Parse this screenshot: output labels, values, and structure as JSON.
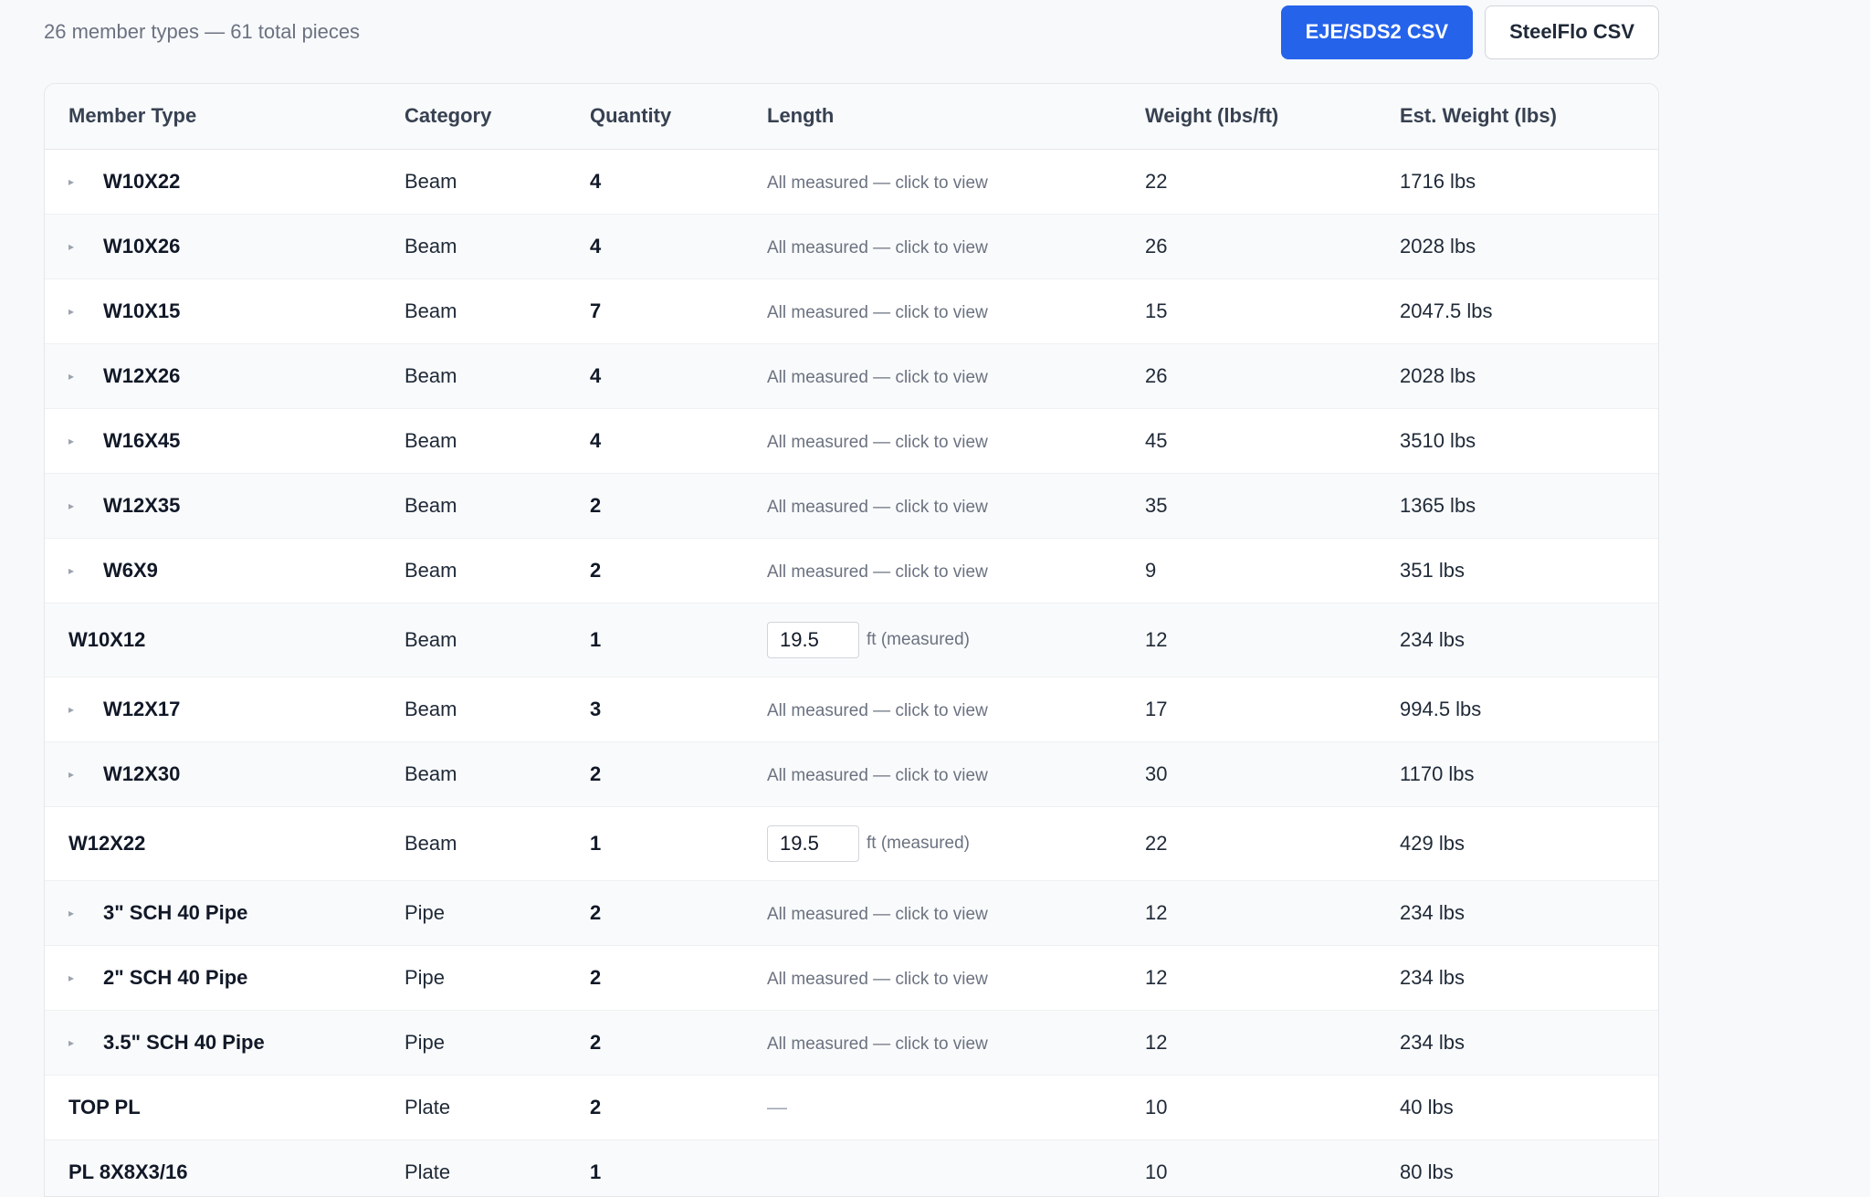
{
  "summary": "26 member types — 61 total pieces",
  "buttons": {
    "eje_sds2": "EJE/SDS2 CSV",
    "steelflo": "SteelFlo CSV"
  },
  "table": {
    "columns": {
      "member_type": "Member Type",
      "category": "Category",
      "quantity": "Quantity",
      "length": "Length",
      "weight": "Weight (lbs/ft)",
      "est_weight": "Est. Weight (lbs)"
    },
    "length_link_text": "All measured — click to view",
    "length_unit": "ft (measured)",
    "rows": [
      {
        "member": "W10X22",
        "category": "Beam",
        "qty": "4",
        "length_mode": "link",
        "weight": "22",
        "est": "1716 lbs"
      },
      {
        "member": "W10X26",
        "category": "Beam",
        "qty": "4",
        "length_mode": "link",
        "weight": "26",
        "est": "2028 lbs"
      },
      {
        "member": "W10X15",
        "category": "Beam",
        "qty": "7",
        "length_mode": "link",
        "weight": "15",
        "est": "2047.5 lbs"
      },
      {
        "member": "W12X26",
        "category": "Beam",
        "qty": "4",
        "length_mode": "link",
        "weight": "26",
        "est": "2028 lbs"
      },
      {
        "member": "W16X45",
        "category": "Beam",
        "qty": "4",
        "length_mode": "link",
        "weight": "45",
        "est": "3510 lbs"
      },
      {
        "member": "W12X35",
        "category": "Beam",
        "qty": "2",
        "length_mode": "link",
        "weight": "35",
        "est": "1365 lbs"
      },
      {
        "member": "W6X9",
        "category": "Beam",
        "qty": "2",
        "length_mode": "link",
        "weight": "9",
        "est": "351 lbs"
      },
      {
        "member": "W10X12",
        "category": "Beam",
        "qty": "1",
        "length_mode": "input",
        "length_value": "19.5",
        "weight": "12",
        "est": "234 lbs"
      },
      {
        "member": "W12X17",
        "category": "Beam",
        "qty": "3",
        "length_mode": "link",
        "weight": "17",
        "est": "994.5 lbs"
      },
      {
        "member": "W12X30",
        "category": "Beam",
        "qty": "2",
        "length_mode": "link",
        "weight": "30",
        "est": "1170 lbs"
      },
      {
        "member": "W12X22",
        "category": "Beam",
        "qty": "1",
        "length_mode": "input",
        "length_value": "19.5",
        "weight": "22",
        "est": "429 lbs"
      },
      {
        "member": "3\" SCH 40 Pipe",
        "category": "Pipe",
        "qty": "2",
        "length_mode": "link",
        "weight": "12",
        "est": "234 lbs"
      },
      {
        "member": "2\" SCH 40 Pipe",
        "category": "Pipe",
        "qty": "2",
        "length_mode": "link",
        "weight": "12",
        "est": "234 lbs"
      },
      {
        "member": "3.5\" SCH 40 Pipe",
        "category": "Pipe",
        "qty": "2",
        "length_mode": "link",
        "weight": "12",
        "est": "234 lbs"
      },
      {
        "member": "TOP PL",
        "category": "Plate",
        "qty": "2",
        "length_mode": "dash",
        "length_value": "—",
        "weight": "10",
        "est": "40 lbs"
      },
      {
        "member": "PL 8X8X3/16",
        "category": "Plate",
        "qty": "1",
        "length_mode": "dash",
        "length_value": "",
        "weight": "10",
        "est": "80 lbs"
      }
    ]
  }
}
